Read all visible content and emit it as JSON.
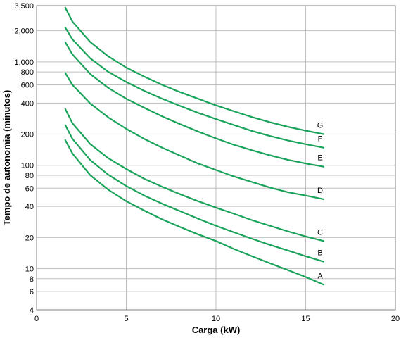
{
  "chart_data": {
    "type": "line",
    "xlabel": "Carga (kW)",
    "ylabel": "Tempo de autonomia (minutos)",
    "xlim": [
      0,
      20
    ],
    "ylim": [
      4,
      3500
    ],
    "yscale": "log",
    "grid": true,
    "line_color": "#1aa35a",
    "x_ticks": [
      0,
      5,
      10,
      15,
      20
    ],
    "x_tick_labels": [
      "0",
      "5",
      "10",
      "15",
      "20"
    ],
    "y_ticks": [
      4,
      6,
      8,
      10,
      20,
      40,
      60,
      80,
      100,
      200,
      400,
      600,
      800,
      1000,
      2000,
      3500
    ],
    "y_tick_labels": [
      "4",
      "6",
      "8",
      "10",
      "20",
      "40",
      "60",
      "80",
      "100",
      "200",
      "400",
      "600",
      "800",
      "1,000",
      "2,000",
      "3,500"
    ],
    "series": [
      {
        "name": "A",
        "x": [
          1.6,
          2,
          3,
          4,
          5,
          6,
          7,
          8,
          9,
          10,
          11,
          12,
          13,
          14,
          15,
          16
        ],
        "values": [
          175,
          130,
          80,
          58,
          45,
          36.5,
          30,
          25.3,
          21.5,
          18.5,
          15.5,
          13.2,
          11.3,
          9.7,
          8.3,
          7
        ]
      },
      {
        "name": "B",
        "x": [
          1.6,
          2,
          3,
          4,
          5,
          6,
          7,
          8,
          9,
          10,
          11,
          12,
          13,
          14,
          15,
          16
        ],
        "values": [
          245,
          180,
          112,
          81,
          63,
          51,
          42.5,
          36,
          30.5,
          26,
          22.5,
          19.5,
          17,
          15,
          13.2,
          11.7
        ]
      },
      {
        "name": "C",
        "x": [
          1.6,
          2,
          3,
          4,
          5,
          6,
          7,
          8,
          9,
          10,
          11,
          12,
          13,
          14,
          15,
          16
        ],
        "values": [
          350,
          255,
          160,
          117,
          92,
          74,
          62,
          52.5,
          45,
          39,
          34,
          29.5,
          26,
          23,
          20.5,
          18.5
        ]
      },
      {
        "name": "D",
        "x": [
          1.6,
          2,
          3,
          4,
          5,
          6,
          7,
          8,
          9,
          10,
          11,
          12,
          13,
          14,
          15,
          16
        ],
        "values": [
          780,
          600,
          395,
          290,
          225,
          180,
          148,
          124,
          104,
          90,
          78,
          69,
          61,
          55,
          51,
          47
        ]
      },
      {
        "name": "E",
        "x": [
          1.6,
          2,
          3,
          4,
          5,
          6,
          7,
          8,
          9,
          10,
          11,
          12,
          13,
          14,
          15,
          16
        ],
        "values": [
          1550,
          1180,
          760,
          560,
          440,
          360,
          297,
          250,
          212,
          182,
          158,
          140,
          125,
          113,
          104,
          97
        ]
      },
      {
        "name": "F",
        "x": [
          1.6,
          2,
          3,
          4,
          5,
          6,
          7,
          8,
          9,
          10,
          11,
          12,
          13,
          14,
          15,
          16
        ],
        "values": [
          2150,
          1650,
          1080,
          800,
          640,
          525,
          440,
          375,
          322,
          280,
          245,
          215,
          192,
          174,
          160,
          148
        ]
      },
      {
        "name": "G",
        "x": [
          1.6,
          2,
          3,
          4,
          5,
          6,
          7,
          8,
          9,
          10,
          11,
          12,
          13,
          14,
          15,
          16
        ],
        "values": [
          3350,
          2450,
          1550,
          1130,
          880,
          720,
          600,
          510,
          440,
          380,
          333,
          293,
          261,
          236,
          216,
          200
        ]
      }
    ]
  }
}
